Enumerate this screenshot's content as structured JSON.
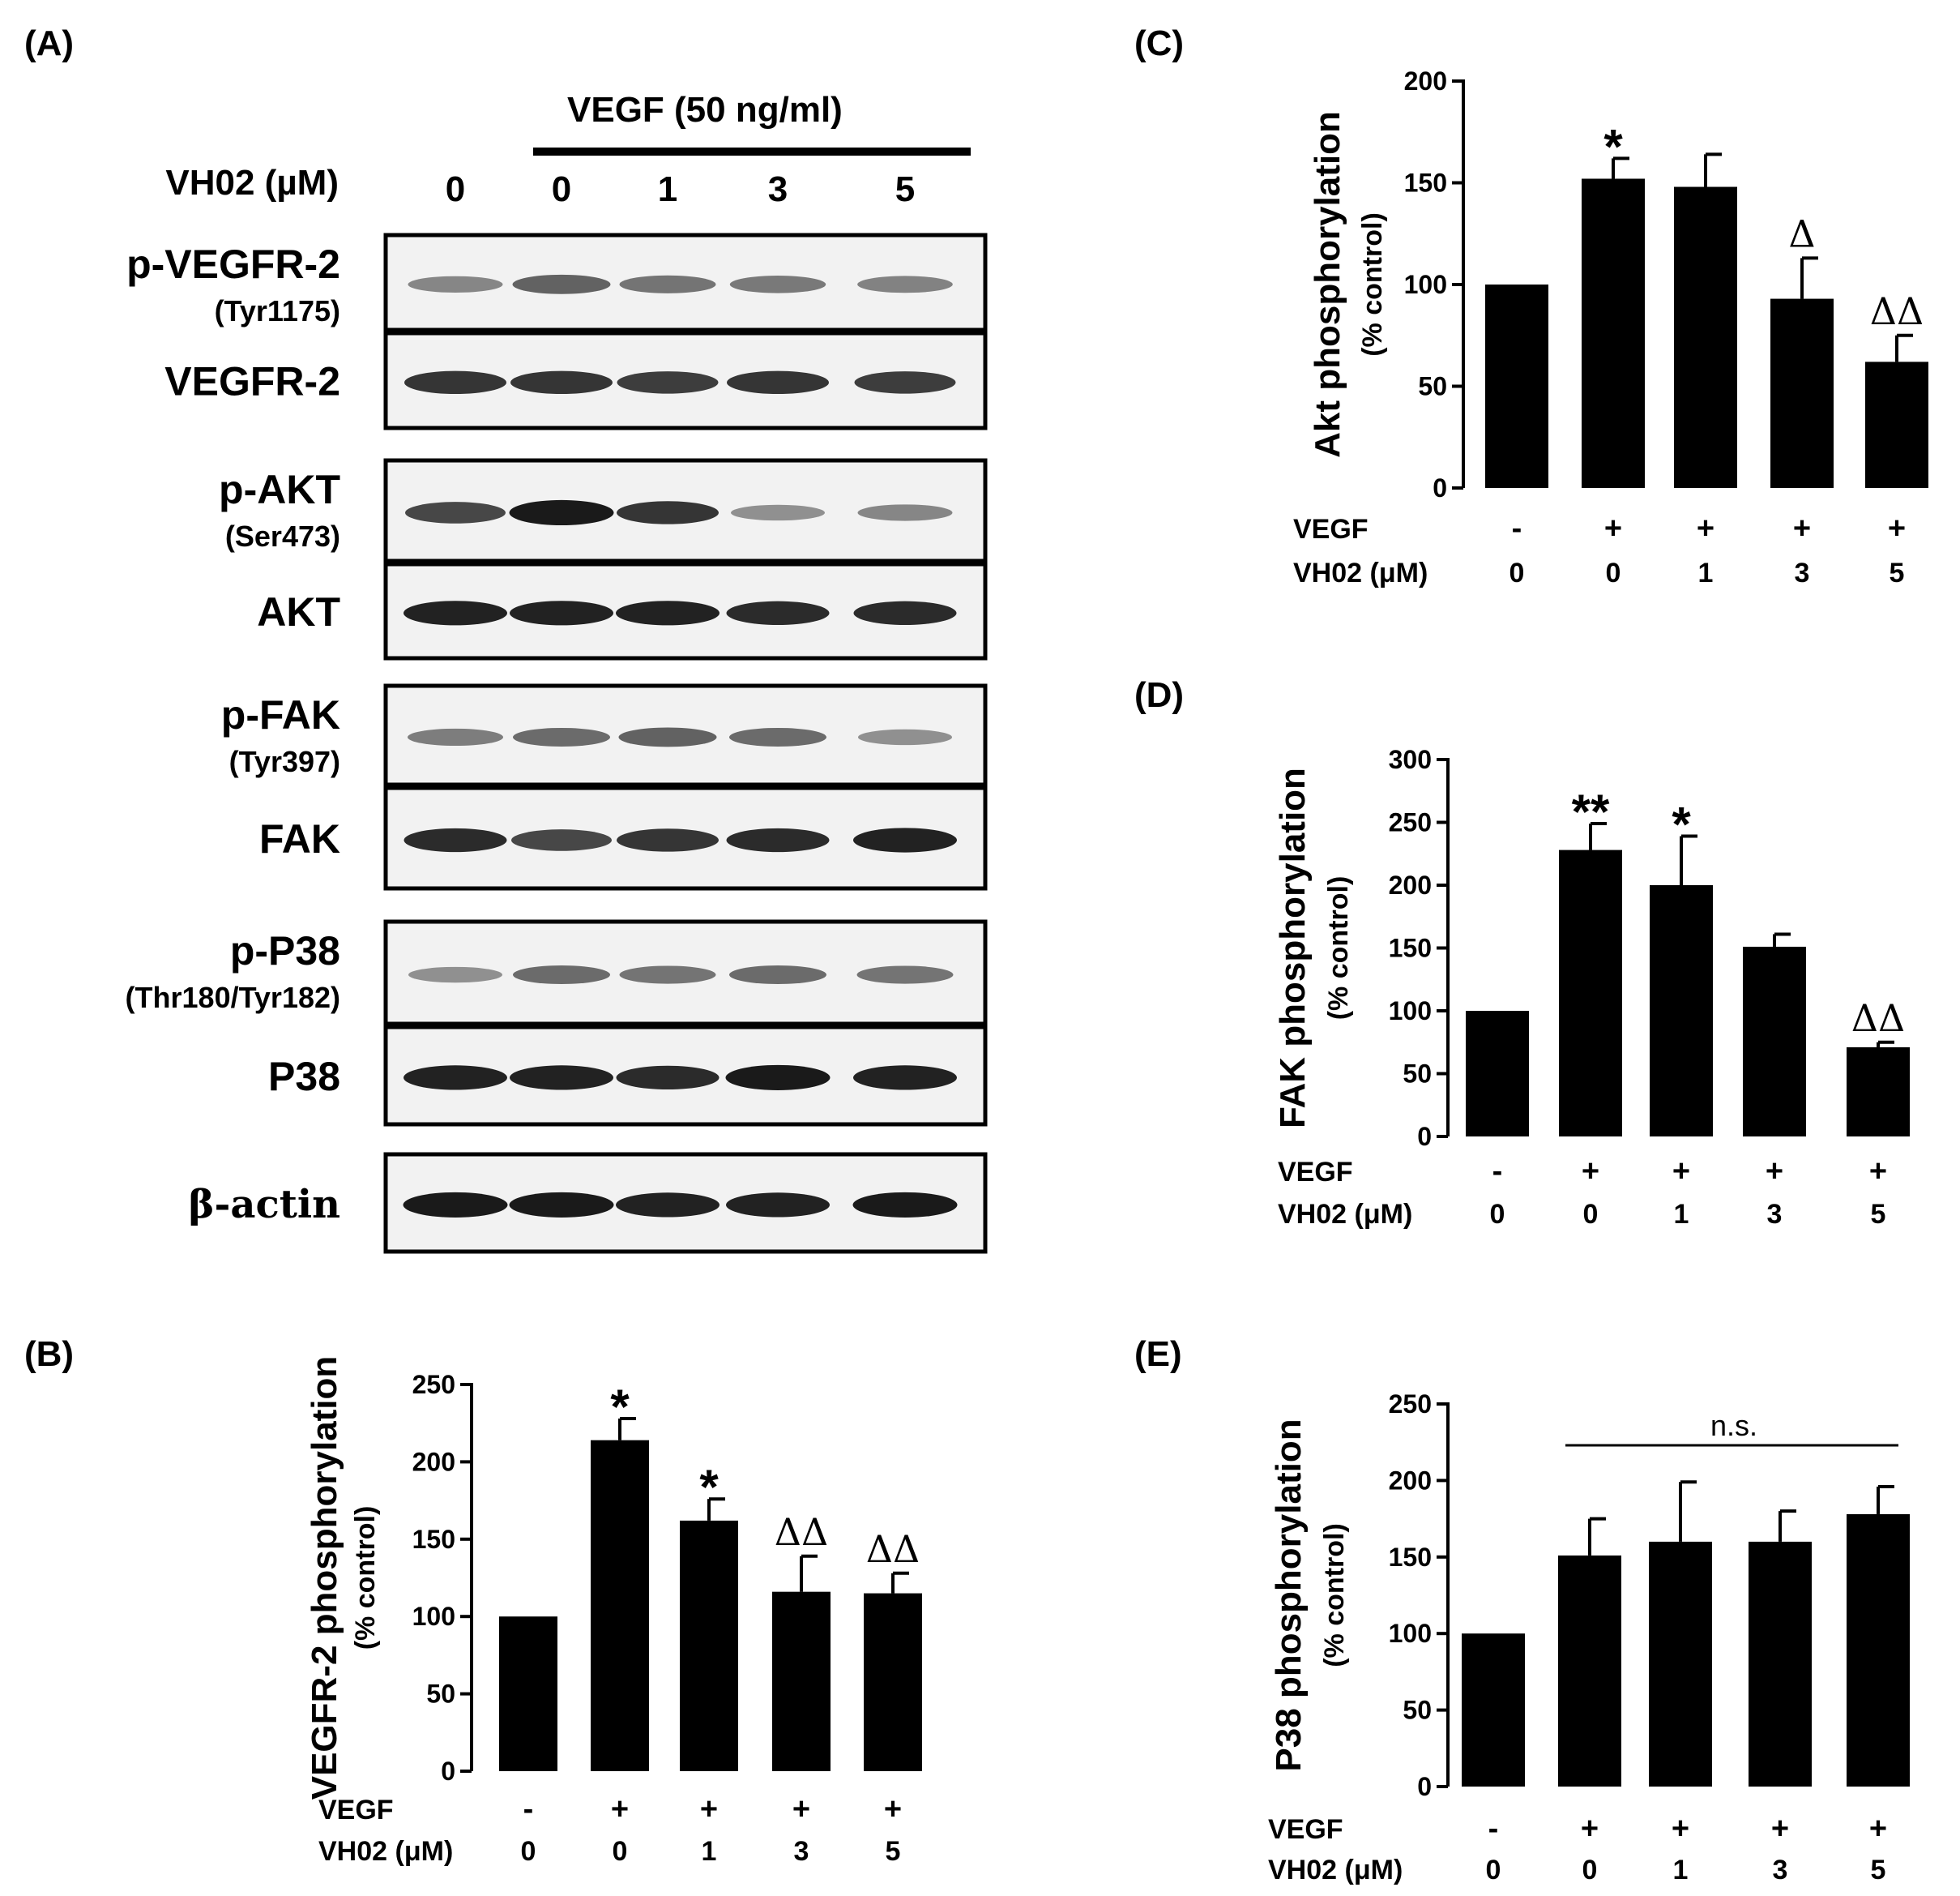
{
  "colors": {
    "bar": "#000000",
    "axis": "#000000",
    "blot_bg": "#f2f2f2",
    "band": "#1a1a1a"
  },
  "panel_a": {
    "label": "(A)",
    "treatment_header": "VEGF (50 ng/ml)",
    "dose_label": "VH02 (µM)",
    "doses": [
      "0",
      "0",
      "1",
      "3",
      "5"
    ],
    "blots": [
      {
        "name": "p-VEGFR-2",
        "sub": "(Tyr1175)",
        "intensity": [
          0.35,
          0.55,
          0.45,
          0.42,
          0.38
        ]
      },
      {
        "name": "VEGFR-2",
        "sub": "",
        "intensity": [
          0.8,
          0.8,
          0.75,
          0.8,
          0.75
        ]
      },
      {
        "name": "p-AKT",
        "sub": "(Ser473)",
        "intensity": [
          0.7,
          0.95,
          0.8,
          0.3,
          0.35
        ]
      },
      {
        "name": "AKT",
        "sub": "",
        "intensity": [
          0.9,
          0.9,
          0.9,
          0.85,
          0.85
        ]
      },
      {
        "name": "p-FAK",
        "sub": "(Tyr397)",
        "intensity": [
          0.4,
          0.5,
          0.55,
          0.5,
          0.3
        ]
      },
      {
        "name": "FAK",
        "sub": "",
        "intensity": [
          0.85,
          0.7,
          0.8,
          0.85,
          0.9
        ]
      },
      {
        "name": "p-P38",
        "sub": "(Thr180/Tyr182)",
        "intensity": [
          0.3,
          0.5,
          0.45,
          0.5,
          0.45
        ]
      },
      {
        "name": "P38",
        "sub": "",
        "intensity": [
          0.9,
          0.9,
          0.85,
          0.95,
          0.9
        ]
      },
      {
        "name": "β-actin",
        "sub": "",
        "intensity": [
          0.95,
          0.95,
          0.9,
          0.9,
          0.95
        ]
      }
    ]
  },
  "chart_data": [
    {
      "id": "B",
      "type": "bar",
      "panel_label": "(B)",
      "ylabel": "VEGFR-2 phosphorylation",
      "ylabel_sub": "(% control)",
      "ylim": [
        0,
        250
      ],
      "yticks": [
        0,
        50,
        100,
        150,
        200,
        250
      ],
      "vegf": [
        "-",
        "+",
        "+",
        "+",
        "+"
      ],
      "vh02": [
        "0",
        "0",
        "1",
        "3",
        "5"
      ],
      "row_labels": [
        "VEGF",
        "VH02 (μM)"
      ],
      "values": [
        100,
        214,
        162,
        116,
        115
      ],
      "errors": [
        0,
        14,
        14,
        23,
        13
      ],
      "annotations": [
        "",
        "*",
        "*",
        "ΔΔ",
        "ΔΔ"
      ],
      "ns_bracket": ""
    },
    {
      "id": "C",
      "type": "bar",
      "panel_label": "(C)",
      "ylabel": "Akt phosphorylation",
      "ylabel_sub": "(% control)",
      "ylim": [
        0,
        200
      ],
      "yticks": [
        0,
        50,
        100,
        150,
        200
      ],
      "vegf": [
        "-",
        "+",
        "+",
        "+",
        "+"
      ],
      "vh02": [
        "0",
        "0",
        "1",
        "3",
        "5"
      ],
      "row_labels": [
        "VEGF",
        "VH02 (μM)"
      ],
      "values": [
        100,
        152,
        148,
        93,
        62
      ],
      "errors": [
        0,
        10,
        16,
        20,
        13
      ],
      "annotations": [
        "",
        "*",
        "",
        "Δ",
        "ΔΔ"
      ],
      "ns_bracket": ""
    },
    {
      "id": "D",
      "type": "bar",
      "panel_label": "(D)",
      "ylabel": "FAK  phosphorylation",
      "ylabel_sub": "(% control)",
      "ylim": [
        0,
        300
      ],
      "yticks": [
        0,
        50,
        100,
        150,
        200,
        250,
        300
      ],
      "vegf": [
        "-",
        "+",
        "+",
        "+",
        "+"
      ],
      "vh02": [
        "0",
        "0",
        "1",
        "3",
        "5"
      ],
      "row_labels": [
        "VEGF",
        "VH02 (μM)"
      ],
      "values": [
        100,
        228,
        200,
        151,
        71
      ],
      "errors": [
        0,
        21,
        39,
        10,
        4
      ],
      "annotations": [
        "",
        "**",
        "*",
        "",
        "ΔΔ"
      ],
      "ns_bracket": ""
    },
    {
      "id": "E",
      "type": "bar",
      "panel_label": "(E)",
      "ylabel": "P38 phosphorylation",
      "ylabel_sub": "(% control)",
      "ylim": [
        0,
        250
      ],
      "yticks": [
        0,
        50,
        100,
        150,
        200,
        250
      ],
      "vegf": [
        "-",
        "+",
        "+",
        "+",
        "+"
      ],
      "vh02": [
        "0",
        "0",
        "1",
        "3",
        "5"
      ],
      "row_labels": [
        "VEGF",
        "VH02 (μM)"
      ],
      "values": [
        100,
        151,
        160,
        160,
        178
      ],
      "errors": [
        0,
        24,
        39,
        20,
        18
      ],
      "annotations": [
        "",
        "",
        "",
        "",
        ""
      ],
      "ns_bracket": "n.s."
    }
  ]
}
